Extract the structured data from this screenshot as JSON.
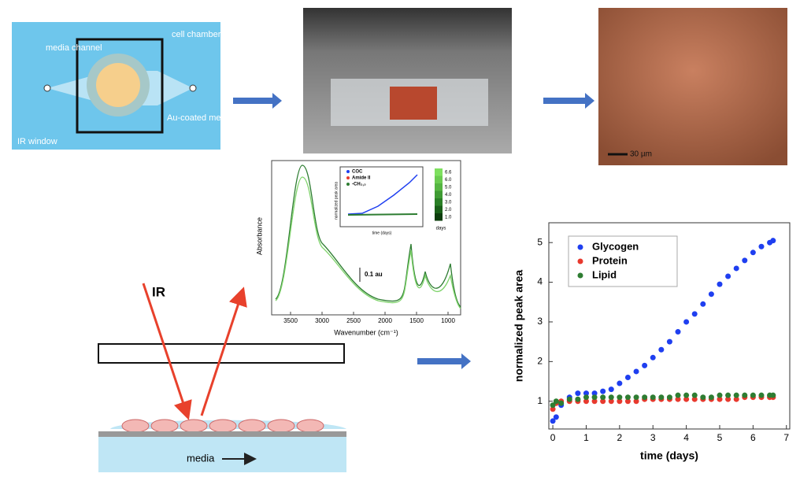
{
  "device": {
    "labels": [
      "media channel",
      "cell chamber",
      "Au-coated membrane",
      "IR window"
    ]
  },
  "microscopy": {
    "scale_bar": "30 µm"
  },
  "spectrum": {
    "y_label": "Absorbance",
    "x_label": "Wavenumber (cm⁻¹)",
    "scale": "0.1 au",
    "xticks": [
      3500,
      3000,
      2500,
      2000,
      1500,
      1000
    ],
    "inset_legend": [
      "COC",
      "Amide II",
      "-CH₂,₃"
    ],
    "inset_y_label": "normalized peak area",
    "inset_x_label": "time (days)",
    "colorbar_ticks": [
      "6.6",
      "6.0",
      "5.0",
      "4.0",
      "3.0",
      "2.0",
      "1.0"
    ],
    "colorbar_label": "days"
  },
  "setup": {
    "beam": "IR",
    "flow": "media"
  },
  "chart_data": {
    "type": "scatter",
    "y_label": "normalized peak area",
    "x_label": "time (days)",
    "xlim": [
      -0.12,
      7.1
    ],
    "ylim": [
      0.3,
      5.5
    ],
    "xticks": [
      0,
      1,
      2,
      3,
      4,
      5,
      6,
      7
    ],
    "yticks": [
      1,
      2,
      3,
      4,
      5
    ],
    "x": [
      0,
      0.1,
      0.25,
      0.5,
      0.75,
      1,
      1.25,
      1.5,
      1.75,
      2,
      2.25,
      2.5,
      2.75,
      3,
      3.25,
      3.5,
      3.75,
      4,
      4.25,
      4.5,
      4.75,
      5,
      5.25,
      5.5,
      5.75,
      6,
      6.25,
      6.5,
      6.6
    ],
    "series": [
      {
        "name": "Glycogen",
        "color": "#1f3ff0",
        "values": [
          0.5,
          0.6,
          0.9,
          1.1,
          1.2,
          1.2,
          1.2,
          1.25,
          1.3,
          1.45,
          1.6,
          1.75,
          1.9,
          2.1,
          2.3,
          2.5,
          2.75,
          3.0,
          3.2,
          3.45,
          3.7,
          3.95,
          4.15,
          4.35,
          4.55,
          4.75,
          4.9,
          5.0,
          5.05
        ]
      },
      {
        "name": "Protein",
        "color": "#e8392e",
        "values": [
          0.8,
          0.95,
          1.0,
          1.0,
          1.0,
          1.0,
          1.0,
          1.0,
          1.0,
          1.0,
          1.0,
          1.0,
          1.05,
          1.05,
          1.05,
          1.05,
          1.05,
          1.05,
          1.05,
          1.05,
          1.05,
          1.05,
          1.05,
          1.05,
          1.1,
          1.1,
          1.1,
          1.1,
          1.1
        ]
      },
      {
        "name": "Lipid",
        "color": "#2e7d32",
        "values": [
          0.9,
          1.0,
          0.95,
          1.05,
          1.05,
          1.1,
          1.1,
          1.1,
          1.1,
          1.1,
          1.1,
          1.1,
          1.1,
          1.1,
          1.1,
          1.1,
          1.15,
          1.15,
          1.15,
          1.1,
          1.1,
          1.15,
          1.15,
          1.15,
          1.15,
          1.15,
          1.15,
          1.15,
          1.15
        ]
      }
    ],
    "legend": "upper left"
  }
}
